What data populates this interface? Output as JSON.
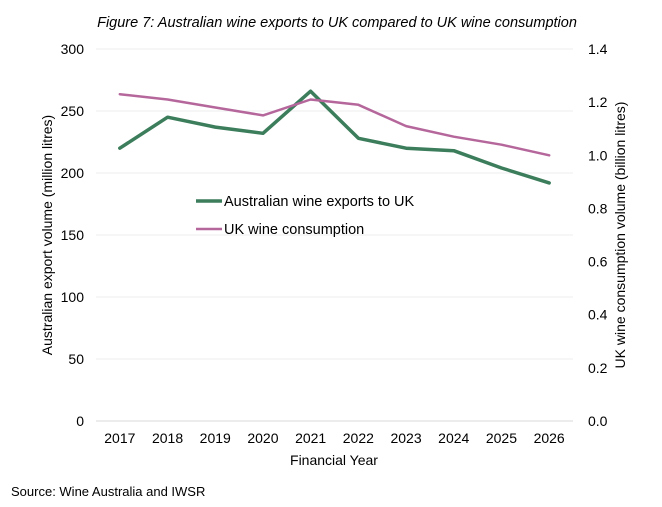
{
  "chart_data": {
    "type": "line",
    "title": "Figure 7: Australian wine exports to UK compared to UK wine consumption",
    "xlabel": "Financial Year",
    "ylabel_left": "Australian export volume (million litres)",
    "ylabel_right": "UK wine consumption volume (billion litres)",
    "categories": [
      "2017",
      "2018",
      "2019",
      "2020",
      "2021",
      "2022",
      "2023",
      "2024",
      "2025",
      "2026"
    ],
    "yleft": {
      "lim": [
        0,
        300
      ],
      "ticks": [
        "0",
        "50",
        "100",
        "150",
        "200",
        "250",
        "300"
      ]
    },
    "yright": {
      "lim": [
        0,
        1.4
      ],
      "ticks": [
        "0.0",
        "0.2",
        "0.4",
        "0.6",
        "0.8",
        "1.0",
        "1.2",
        "1.4"
      ]
    },
    "series": [
      {
        "name": "Australian wine exports to UK",
        "axis": "left",
        "color": "#3c7d5c",
        "values": [
          220,
          245,
          237,
          232,
          266,
          228,
          220,
          218,
          204,
          192
        ]
      },
      {
        "name": "UK wine consumption",
        "axis": "right",
        "color": "#b5679c",
        "values": [
          1.23,
          1.21,
          1.18,
          1.15,
          1.21,
          1.19,
          1.11,
          1.07,
          1.04,
          1.0
        ]
      }
    ],
    "grid": true,
    "legend_position": "center-left"
  },
  "source": "Source: Wine Australia and IWSR"
}
